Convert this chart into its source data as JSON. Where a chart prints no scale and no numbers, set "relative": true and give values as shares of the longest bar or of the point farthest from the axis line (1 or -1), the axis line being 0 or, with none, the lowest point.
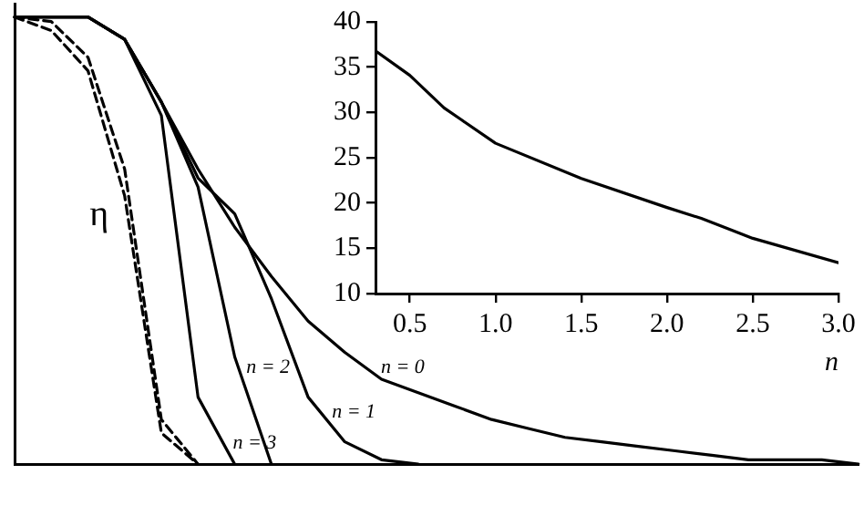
{
  "chart_data": [
    {
      "type": "line",
      "relative": true,
      "ylabel": "η",
      "categories": [
        null,
        null,
        null,
        null,
        null,
        null,
        null,
        null,
        null,
        null,
        null,
        null,
        null,
        null,
        null,
        null,
        null,
        null,
        null,
        null,
        null,
        null,
        null,
        null
      ],
      "line_style": "solid",
      "marker": "none",
      "legend": false,
      "grid": false,
      "series": [
        {
          "name": "n = 0",
          "color": "#000000",
          "values": [
            1,
            1,
            1,
            0.95,
            0.81,
            0.66,
            0.53,
            0.42,
            0.32,
            0.25,
            0.19,
            0.16,
            0.13,
            0.1,
            0.08,
            0.06,
            0.05,
            0.04,
            0.03,
            0.02,
            0.01,
            0.01,
            0.01,
            0
          ]
        },
        {
          "name": "n = 1",
          "color": "#000000",
          "values": [
            1,
            1,
            1,
            0.95,
            0.81,
            0.64,
            0.56,
            0.37,
            0.15,
            0.05,
            0.01,
            0,
            null,
            null,
            null,
            null,
            null,
            null,
            null,
            null,
            null,
            null,
            null,
            null
          ]
        },
        {
          "name": "n = 2",
          "color": "#000000",
          "values": [
            1,
            1,
            1,
            0.95,
            0.81,
            0.62,
            0.24,
            0,
            null,
            null,
            null,
            null,
            null,
            null,
            null,
            null,
            null,
            null,
            null,
            null,
            null,
            null,
            null,
            null
          ]
        },
        {
          "name": "n = 3",
          "color": "#000000",
          "values": [
            1,
            1,
            1,
            0.95,
            0.78,
            0.15,
            0,
            null,
            null,
            null,
            null,
            null,
            null,
            null,
            null,
            null,
            null,
            null,
            null,
            null,
            null,
            null,
            null,
            null
          ]
        },
        {
          "color": "#000000",
          "line_style": "dashed",
          "values": [
            1,
            0.99,
            0.91,
            0.66,
            0.1,
            0,
            null,
            null,
            null,
            null,
            null,
            null,
            null,
            null,
            null,
            null,
            null,
            null,
            null,
            null,
            null,
            null,
            null,
            null
          ]
        },
        {
          "color": "#000000",
          "line_style": "dashed",
          "values": [
            1,
            0.97,
            0.88,
            0.6,
            0.07,
            0,
            null,
            null,
            null,
            null,
            null,
            null,
            null,
            null,
            null,
            null,
            null,
            null,
            null,
            null,
            null,
            null,
            null,
            null
          ]
        }
      ]
    },
    {
      "type": "line",
      "xlabel": "n",
      "x": [
        0.3,
        0.5,
        0.7,
        0.8,
        1.0,
        1.5,
        2.0,
        2.2,
        2.5,
        3.0
      ],
      "xlim": [
        0.3,
        3.0
      ],
      "xticks": [
        0.5,
        {
          "value": 1,
          "label": "1.0"
        },
        1.5,
        {
          "value": 2,
          "label": "2.0"
        },
        2.5,
        {
          "value": 3,
          "label": "3.0"
        }
      ],
      "ylim": [
        10,
        40
      ],
      "yticks": [
        10,
        15,
        20,
        25,
        30,
        35,
        40
      ],
      "line_style": "solid",
      "marker": "none",
      "legend": false,
      "grid": false,
      "series": [
        {
          "color": "#000000",
          "values": [
            36.8,
            34.1,
            30.5,
            29.2,
            26.6,
            22.7,
            19.5,
            18.3,
            16.1,
            13.4
          ]
        }
      ]
    }
  ]
}
